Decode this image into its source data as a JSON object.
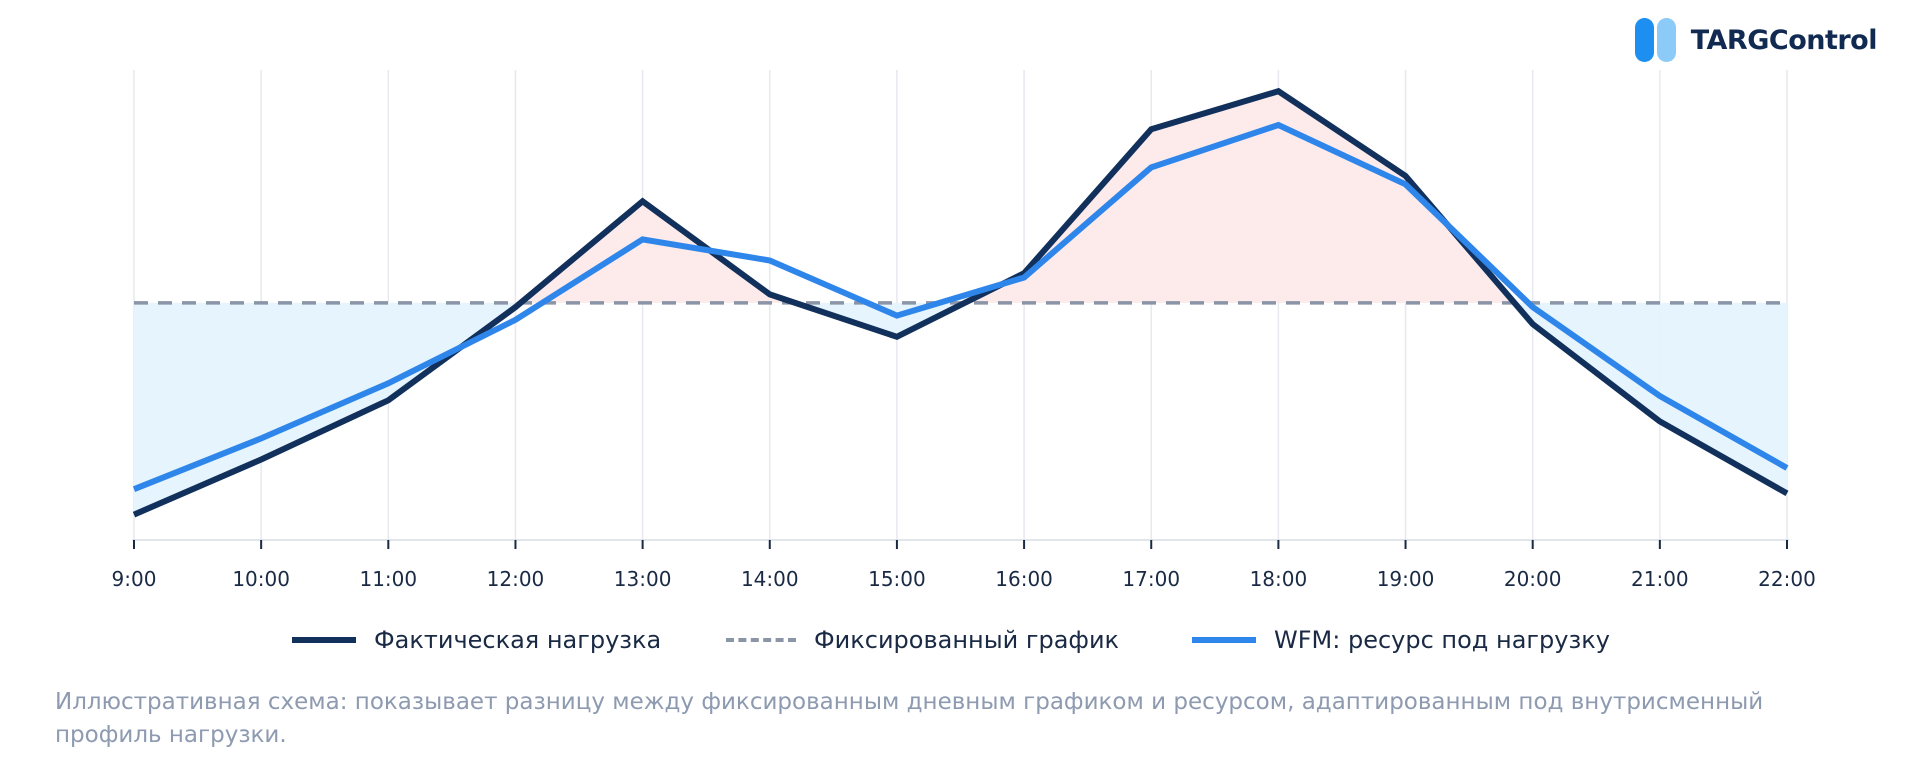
{
  "brand": {
    "name": "TARGControl"
  },
  "chart_data": {
    "type": "line",
    "categories": [
      "9:00",
      "10:00",
      "11:00",
      "12:00",
      "13:00",
      "14:00",
      "15:00",
      "16:00",
      "17:00",
      "18:00",
      "19:00",
      "20:00",
      "21:00",
      "22:00"
    ],
    "series": [
      {
        "name": "Фактическая нагрузка",
        "values": [
          0.0,
          0.13,
          0.27,
          0.49,
          0.74,
          0.52,
          0.42,
          0.57,
          0.91,
          1.0,
          0.8,
          0.45,
          0.22,
          0.05
        ]
      },
      {
        "name": "Фиксированный график",
        "values": [
          0.5,
          0.5,
          0.5,
          0.5,
          0.5,
          0.5,
          0.5,
          0.5,
          0.5,
          0.5,
          0.5,
          0.5,
          0.5,
          0.5
        ]
      },
      {
        "name": "WFM: ресурс под нагрузку",
        "values": [
          0.06,
          0.18,
          0.31,
          0.46,
          0.65,
          0.6,
          0.47,
          0.56,
          0.82,
          0.92,
          0.78,
          0.49,
          0.28,
          0.11
        ]
      }
    ],
    "ylim": [
      -0.06,
      1.05
    ],
    "grid": "vertical",
    "legend": "bottom-center",
    "shading": "blue where fixed schedule exceeds actual load, pink where actual load exceeds fixed schedule",
    "colors": {
      "actual": "#11315c",
      "fixed": "#8a95a8",
      "wfm": "#2f86ea",
      "under_fill": "#e5f4fd",
      "over_fill": "#fdebec",
      "grid": "#e6e9ee"
    },
    "title": "",
    "xlabel": "",
    "ylabel": ""
  },
  "legend": {
    "actual_label": "Фактическая нагрузка",
    "fixed_label": "Фиксированный график",
    "wfm_label": "WFM: ресурс под нагрузку"
  },
  "caption": "Иллюстративная схема: показывает разницу между фиксированным дневным графиком и ресурсом, адаптированным под внутрисменный профиль нагрузки."
}
